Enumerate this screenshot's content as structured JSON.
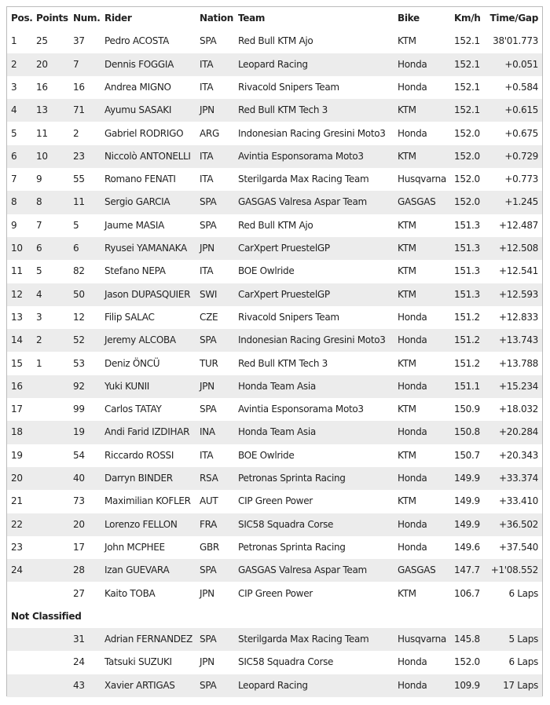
{
  "table": {
    "columns": [
      "Pos.",
      "Points",
      "Num.",
      "Rider",
      "Nation",
      "Team",
      "Bike",
      "Km/h",
      "Time/Gap"
    ],
    "rows": [
      [
        "1",
        "25",
        "37",
        "Pedro ACOSTA",
        "SPA",
        "Red Bull KTM Ajo",
        "KTM",
        "152.1",
        "38'01.773"
      ],
      [
        "2",
        "20",
        "7",
        "Dennis FOGGIA",
        "ITA",
        "Leopard Racing",
        "Honda",
        "152.1",
        "+0.051"
      ],
      [
        "3",
        "16",
        "16",
        "Andrea MIGNO",
        "ITA",
        "Rivacold Snipers Team",
        "Honda",
        "152.1",
        "+0.584"
      ],
      [
        "4",
        "13",
        "71",
        "Ayumu SASAKI",
        "JPN",
        "Red Bull KTM Tech 3",
        "KTM",
        "152.1",
        "+0.615"
      ],
      [
        "5",
        "11",
        "2",
        "Gabriel RODRIGO",
        "ARG",
        "Indonesian Racing Gresini Moto3",
        "Honda",
        "152.0",
        "+0.675"
      ],
      [
        "6",
        "10",
        "23",
        "Niccolò ANTONELLI",
        "ITA",
        "Avintia Esponsorama Moto3",
        "KTM",
        "152.0",
        "+0.729"
      ],
      [
        "7",
        "9",
        "55",
        "Romano FENATI",
        "ITA",
        "Sterilgarda Max Racing Team",
        "Husqvarna",
        "152.0",
        "+0.773"
      ],
      [
        "8",
        "8",
        "11",
        "Sergio GARCIA",
        "SPA",
        "GASGAS Valresa Aspar Team",
        "GASGAS",
        "152.0",
        "+1.245"
      ],
      [
        "9",
        "7",
        "5",
        "Jaume MASIA",
        "SPA",
        "Red Bull KTM Ajo",
        "KTM",
        "151.3",
        "+12.487"
      ],
      [
        "10",
        "6",
        "6",
        "Ryusei YAMANAKA",
        "JPN",
        "CarXpert PruestelGP",
        "KTM",
        "151.3",
        "+12.508"
      ],
      [
        "11",
        "5",
        "82",
        "Stefano NEPA",
        "ITA",
        "BOE Owlride",
        "KTM",
        "151.3",
        "+12.541"
      ],
      [
        "12",
        "4",
        "50",
        "Jason DUPASQUIER",
        "SWI",
        "CarXpert PruestelGP",
        "KTM",
        "151.3",
        "+12.593"
      ],
      [
        "13",
        "3",
        "12",
        "Filip SALAC",
        "CZE",
        "Rivacold Snipers Team",
        "Honda",
        "151.2",
        "+12.833"
      ],
      [
        "14",
        "2",
        "52",
        "Jeremy ALCOBA",
        "SPA",
        "Indonesian Racing Gresini Moto3",
        "Honda",
        "151.2",
        "+13.743"
      ],
      [
        "15",
        "1",
        "53",
        "Deniz ÖNCÜ",
        "TUR",
        "Red Bull KTM Tech 3",
        "KTM",
        "151.2",
        "+13.788"
      ],
      [
        "16",
        null,
        "92",
        "Yuki KUNII",
        "JPN",
        "Honda Team Asia",
        "Honda",
        "151.1",
        "+15.234"
      ],
      [
        "17",
        null,
        "99",
        "Carlos TATAY",
        "SPA",
        "Avintia Esponsorama Moto3",
        "KTM",
        "150.9",
        "+18.032"
      ],
      [
        "18",
        null,
        "19",
        "Andi Farid IZDIHAR",
        "INA",
        "Honda Team Asia",
        "Honda",
        "150.8",
        "+20.284"
      ],
      [
        "19",
        null,
        "54",
        "Riccardo ROSSI",
        "ITA",
        "BOE Owlride",
        "KTM",
        "150.7",
        "+20.343"
      ],
      [
        "20",
        null,
        "40",
        "Darryn BINDER",
        "RSA",
        "Petronas Sprinta Racing",
        "Honda",
        "149.9",
        "+33.374"
      ],
      [
        "21",
        null,
        "73",
        "Maximilian KOFLER",
        "AUT",
        "CIP Green Power",
        "KTM",
        "149.9",
        "+33.410"
      ],
      [
        "22",
        null,
        "20",
        "Lorenzo FELLON",
        "FRA",
        "SIC58 Squadra Corse",
        "Honda",
        "149.9",
        "+36.502"
      ],
      [
        "23",
        null,
        "17",
        "John MCPHEE",
        "GBR",
        "Petronas Sprinta Racing",
        "Honda",
        "149.6",
        "+37.540"
      ],
      [
        "24",
        null,
        "28",
        "Izan GUEVARA",
        "SPA",
        "GASGAS Valresa Aspar Team",
        "GASGAS",
        "147.7",
        "+1'08.552"
      ],
      [
        null,
        null,
        "27",
        "Kaito TOBA",
        "JPN",
        "CIP Green Power",
        "KTM",
        "106.7",
        "6 Laps"
      ]
    ],
    "section": "Not Classified",
    "unclassified_rows": [
      [
        null,
        null,
        "31",
        "Adrian FERNANDEZ",
        "SPA",
        "Sterilgarda Max Racing Team",
        "Husqvarna",
        "145.8",
        "5 Laps"
      ],
      [
        null,
        null,
        "24",
        "Tatsuki SUZUKI",
        "JPN",
        "SIC58 Squadra Corse",
        "Honda",
        "152.0",
        "6 Laps"
      ],
      [
        null,
        null,
        "43",
        "Xavier ARTIGAS",
        "SPA",
        "Leopard Racing",
        "Honda",
        "109.9",
        "17 Laps"
      ]
    ]
  }
}
